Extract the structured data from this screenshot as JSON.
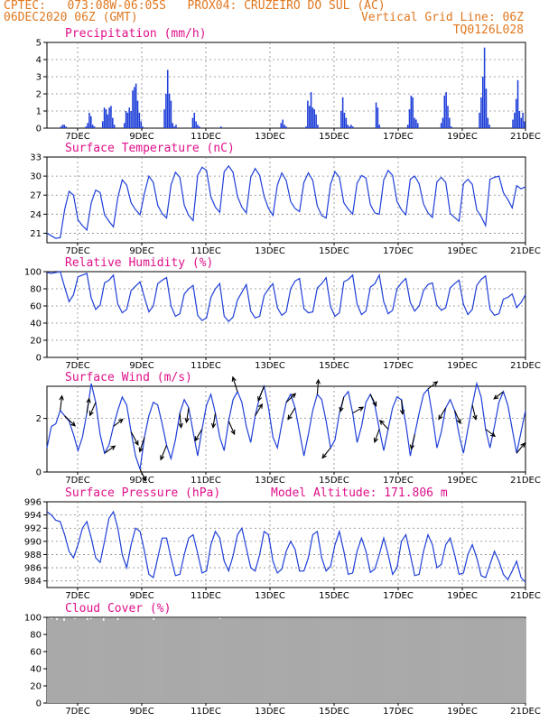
{
  "header": {
    "line1": "CPTEC:   073:08W-06:05S   PROX04: CRUZEIRO DO SUL (AC)",
    "line2_left": "06DEC2020 06Z (GMT)",
    "line2_right": "Vertical Grid Line: 06Z",
    "line3_right": "TQ0126L028"
  },
  "colors": {
    "header": "#e07820",
    "panel_title": "#e0108a",
    "series": "#1f3fd8",
    "cloud": "#a9a9a9",
    "arrow": "#000000"
  },
  "x_axis": {
    "start": "06DEC2020 06Z",
    "end": "21DEC2020 00Z",
    "tick_labels": [
      "7DEC",
      "9DEC",
      "11DEC",
      "13DEC",
      "15DEC",
      "17DEC",
      "19DEC",
      "21DEC"
    ]
  },
  "chart_data": [
    {
      "type": "bar",
      "title": "Precipitation (mm/h)",
      "ylim": [
        0,
        5
      ],
      "yticks": [
        "0",
        "1",
        "2",
        "3",
        "4",
        "5"
      ],
      "values": [
        0,
        0,
        0,
        0,
        0,
        0,
        0,
        0,
        0.1,
        0.2,
        0.2,
        0.1,
        0,
        0,
        0,
        0,
        0,
        0,
        0,
        0,
        0,
        0,
        0,
        0.1,
        0.3,
        0.9,
        0.7,
        0.2,
        0.1,
        0,
        0,
        0,
        0,
        0.4,
        1.2,
        1.1,
        0.8,
        1.2,
        1.3,
        0.6,
        0.2,
        0,
        0,
        0,
        0,
        0,
        0.3,
        1.0,
        0.9,
        1.2,
        1.0,
        2.2,
        2.4,
        2.6,
        1.6,
        0.9,
        0.4,
        0.1,
        0,
        0,
        0,
        0,
        0,
        0,
        0,
        0,
        0,
        0,
        0,
        0,
        1.1,
        2.0,
        3.4,
        2.0,
        1.6,
        0.3,
        0.1,
        0.2,
        0,
        0,
        0,
        0,
        0,
        0,
        0,
        0,
        0,
        0.6,
        0.9,
        0.4,
        0.2,
        0.1,
        0,
        0,
        0,
        0,
        0,
        0,
        0,
        0,
        0,
        0,
        0,
        0,
        0.1,
        0,
        0,
        0,
        0,
        0,
        0,
        0,
        0,
        0,
        0,
        0,
        0,
        0,
        0,
        0,
        0,
        0,
        0,
        0,
        0,
        0,
        0,
        0,
        0,
        0,
        0,
        0,
        0,
        0,
        0,
        0,
        0,
        0,
        0,
        0,
        0.3,
        0.5,
        0.2,
        0.1,
        0,
        0,
        0,
        0,
        0,
        0,
        0,
        0,
        0,
        0,
        0,
        0.1,
        1.6,
        1.3,
        2.1,
        1.2,
        1.1,
        0.8,
        0.2,
        0,
        0,
        0,
        0,
        0,
        0,
        0,
        0,
        0,
        0,
        0,
        0,
        0,
        1.0,
        1.8,
        0.9,
        0.6,
        0.2,
        0.1,
        0.2,
        0.1,
        0,
        0,
        0,
        0,
        0,
        0,
        0,
        0,
        0,
        0,
        0,
        0,
        0,
        1.5,
        1.2,
        0.2,
        0,
        0,
        0,
        0,
        0,
        0,
        0,
        0,
        0,
        0,
        0,
        0,
        0,
        0,
        0,
        0,
        0.2,
        1.1,
        1.9,
        1.8,
        0.6,
        0.5,
        0.3,
        0,
        0,
        0,
        0,
        0,
        0,
        0,
        0,
        0,
        0,
        0,
        0,
        0,
        0.3,
        0.6,
        1.9,
        2.1,
        1.3,
        0.6,
        0.1,
        0,
        0,
        0,
        0,
        0,
        0,
        0,
        0,
        0,
        0,
        0,
        0,
        0,
        0,
        0,
        0,
        0.9,
        1.8,
        3.0,
        4.7,
        2.3,
        0.6,
        0.2,
        0,
        0,
        0,
        0,
        0,
        0,
        0,
        0,
        0,
        0,
        0,
        0,
        0,
        0.5,
        0.9,
        1.7,
        2.8,
        1.0,
        0.6,
        0.9,
        0.4
      ]
    },
    {
      "type": "line",
      "title": "Surface Temperature (nC)",
      "ylim": [
        19.5,
        33
      ],
      "yticks": [
        "21",
        "24",
        "27",
        "30",
        "33"
      ],
      "series": [
        {
          "values": [
            21.0,
            20.6,
            20.2,
            20.3,
            24.7,
            27.6,
            27.0,
            23.1,
            22.2,
            21.5,
            25.8,
            27.8,
            27.4,
            23.9,
            22.9,
            22.0,
            26.6,
            29.4,
            28.6,
            25.8,
            24.7,
            23.9,
            27.3,
            30.0,
            29.0,
            25.4,
            24.1,
            23.4,
            28.6,
            30.6,
            29.8,
            25.4,
            23.8,
            23.0,
            30.1,
            31.4,
            30.9,
            26.7,
            25.1,
            24.3,
            30.7,
            31.6,
            30.6,
            26.8,
            25.1,
            24.2,
            29.8,
            31.2,
            30.1,
            26.8,
            24.9,
            23.8,
            28.6,
            30.5,
            29.3,
            26.0,
            24.9,
            24.4,
            29.0,
            30.5,
            29.3,
            25.3,
            23.8,
            23.4,
            28.7,
            30.7,
            29.8,
            25.8,
            24.8,
            24.0,
            28.9,
            30.1,
            29.7,
            25.5,
            24.2,
            24.0,
            29.4,
            30.9,
            30.1,
            26.0,
            24.7,
            23.9,
            29.5,
            30.0,
            28.8,
            25.6,
            24.2,
            23.5,
            29.1,
            29.8,
            29.0,
            24.1,
            23.5,
            22.9,
            28.8,
            29.5,
            28.7,
            24.7,
            23.6,
            22.2,
            29.5,
            29.8,
            30.0,
            27.4,
            26.3,
            25.0,
            28.5,
            28.0,
            28.3
          ]
        }
      ]
    },
    {
      "type": "line",
      "title": "Relative Humidity (%)",
      "ylim": [
        0,
        100
      ],
      "yticks": [
        "0",
        "20",
        "40",
        "60",
        "80",
        "100"
      ],
      "series": [
        {
          "values": [
            99,
            98,
            99,
            100,
            82,
            65,
            73,
            94,
            96,
            98,
            69,
            56,
            61,
            87,
            90,
            96,
            62,
            52,
            56,
            78,
            83,
            88,
            70,
            53,
            60,
            86,
            90,
            93,
            60,
            48,
            51,
            74,
            80,
            84,
            49,
            43,
            46,
            70,
            80,
            86,
            48,
            42,
            47,
            67,
            76,
            85,
            54,
            46,
            48,
            72,
            80,
            86,
            58,
            49,
            53,
            80,
            89,
            92,
            57,
            52,
            53,
            81,
            86,
            93,
            59,
            48,
            52,
            88,
            91,
            96,
            62,
            50,
            54,
            82,
            86,
            96,
            65,
            51,
            55,
            80,
            87,
            92,
            64,
            54,
            60,
            78,
            85,
            87,
            61,
            55,
            58,
            81,
            86,
            90,
            62,
            50,
            56,
            84,
            91,
            95,
            56,
            49,
            51,
            68,
            70,
            74,
            58,
            64,
            73
          ]
        }
      ]
    },
    {
      "type": "line",
      "title": "Surface Wind (m/s)",
      "ylim": [
        0,
        3.2
      ],
      "yticks": [
        "0",
        "2"
      ],
      "series": [
        {
          "values": [
            0.9,
            1.7,
            1.8,
            2.3,
            2.1,
            1.9,
            1.4,
            0.8,
            1.3,
            2.2,
            3.3,
            2.6,
            1.4,
            0.7,
            1.0,
            1.7,
            2.3,
            2.8,
            2.5,
            1.5,
            0.6,
            0.1,
            1.3,
            2.1,
            2.6,
            2.5,
            1.8,
            1.0,
            0.5,
            1.2,
            2.2,
            2.7,
            2.4,
            1.5,
            0.6,
            1.6,
            2.5,
            2.9,
            2.2,
            1.3,
            0.8,
            1.9,
            2.7,
            3.0,
            2.6,
            1.7,
            1.1,
            2.1,
            2.8,
            3.2,
            2.4,
            1.3,
            0.9,
            1.8,
            2.6,
            2.9,
            2.4,
            1.5,
            0.6,
            1.4,
            2.3,
            2.9,
            2.7,
            1.9,
            0.9,
            1.2,
            2.2,
            2.8,
            3.0,
            2.2,
            1.1,
            1.7,
            2.6,
            2.9,
            2.5,
            1.6,
            0.8,
            1.6,
            2.4,
            2.8,
            2.7,
            1.8,
            0.6,
            1.4,
            2.2,
            2.9,
            3.1,
            2.1,
            0.9,
            1.5,
            2.4,
            2.7,
            2.3,
            1.4,
            0.7,
            1.6,
            2.5,
            3.3,
            2.8,
            1.6,
            0.9,
            1.7,
            2.6,
            3.0,
            2.5,
            1.6,
            0.7,
            1.5,
            2.3
          ]
        }
      ],
      "wind_vectors": [
        {
          "t": 3,
          "dx": 0.15,
          "dy": 1
        },
        {
          "t": 4,
          "dx": 0.9,
          "dy": -0.7
        },
        {
          "t": 9,
          "dx": 0.2,
          "dy": 1
        },
        {
          "t": 11,
          "dx": -0.5,
          "dy": -0.9
        },
        {
          "t": 13,
          "dx": 0.9,
          "dy": 0.5
        },
        {
          "t": 15,
          "dx": 0.8,
          "dy": 0.5
        },
        {
          "t": 19,
          "dx": 0.6,
          "dy": -0.9
        },
        {
          "t": 21,
          "dx": 0.5,
          "dy": -0.8
        },
        {
          "t": 22,
          "dx": -0.4,
          "dy": -1
        },
        {
          "t": 27,
          "dx": -0.5,
          "dy": -1
        },
        {
          "t": 30,
          "dx": 0.1,
          "dy": -1
        },
        {
          "t": 32,
          "dx": -0.2,
          "dy": -1
        },
        {
          "t": 35,
          "dx": -0.6,
          "dy": -0.8
        },
        {
          "t": 38,
          "dx": -0.2,
          "dy": -1
        },
        {
          "t": 41,
          "dx": 0.5,
          "dy": -0.9
        },
        {
          "t": 43,
          "dx": -0.4,
          "dy": 1
        },
        {
          "t": 47,
          "dx": 0.6,
          "dy": 0.8
        },
        {
          "t": 49,
          "dx": -0.5,
          "dy": -1
        },
        {
          "t": 54,
          "dx": 0.8,
          "dy": 0.6
        },
        {
          "t": 56,
          "dx": -0.6,
          "dy": -0.8
        },
        {
          "t": 61,
          "dx": 0.1,
          "dy": 1
        },
        {
          "t": 64,
          "dx": -0.7,
          "dy": -0.7
        },
        {
          "t": 67,
          "dx": -0.3,
          "dy": -1
        },
        {
          "t": 69,
          "dx": 0.9,
          "dy": 0.4
        },
        {
          "t": 73,
          "dx": 0.5,
          "dy": -0.8
        },
        {
          "t": 75,
          "dx": -0.4,
          "dy": -0.9
        },
        {
          "t": 77,
          "dx": -0.7,
          "dy": 0.6
        },
        {
          "t": 80,
          "dx": 0.1,
          "dy": -1
        },
        {
          "t": 83,
          "dx": -0.3,
          "dy": -1
        },
        {
          "t": 86,
          "dx": 0.8,
          "dy": 0.5
        },
        {
          "t": 90,
          "dx": -0.6,
          "dy": -0.8
        },
        {
          "t": 92,
          "dx": 0.5,
          "dy": -0.9
        },
        {
          "t": 96,
          "dx": 0.3,
          "dy": -1
        },
        {
          "t": 99,
          "dx": 0.8,
          "dy": -0.5
        },
        {
          "t": 103,
          "dx": -0.8,
          "dy": -0.5
        },
        {
          "t": 106,
          "dx": 0.7,
          "dy": 0.7
        }
      ]
    },
    {
      "type": "line",
      "title": "Surface Pressure (hPa)",
      "annotation": "Model Altitude: 171.806 m",
      "ylim": [
        983,
        996
      ],
      "yticks": [
        "984",
        "986",
        "988",
        "990",
        "992",
        "994",
        "996"
      ],
      "series": [
        {
          "values": [
            994.5,
            994.0,
            993.2,
            993.0,
            991.0,
            988.5,
            987.5,
            989.5,
            992.0,
            993.0,
            990.5,
            987.5,
            986.8,
            990.0,
            993.5,
            994.5,
            992.0,
            988.0,
            986.0,
            989.5,
            992.0,
            991.5,
            988.5,
            985.0,
            984.5,
            987.5,
            990.5,
            990.5,
            987.5,
            984.8,
            985.0,
            988.0,
            990.5,
            991.0,
            988.2,
            985.2,
            985.5,
            989.5,
            991.5,
            990.5,
            987.0,
            985.5,
            987.8,
            991.0,
            992.0,
            989.0,
            986.0,
            985.5,
            988.0,
            991.5,
            991.0,
            987.0,
            985.2,
            985.8,
            988.5,
            990.0,
            988.8,
            985.5,
            985.5,
            987.5,
            991.0,
            991.5,
            987.5,
            985.5,
            986.2,
            989.5,
            991.5,
            988.5,
            985.0,
            985.2,
            988.5,
            990.5,
            988.5,
            985.3,
            985.8,
            988.0,
            990.5,
            988.0,
            985.0,
            986.0,
            990.0,
            991.0,
            988.0,
            984.8,
            985.0,
            988.5,
            991.0,
            989.5,
            986.0,
            986.5,
            989.5,
            990.5,
            988.0,
            985.0,
            985.2,
            988.0,
            989.5,
            987.5,
            984.8,
            984.5,
            986.5,
            988.5,
            987.0,
            985.0,
            984.2,
            985.5,
            987.0,
            984.5,
            983.8
          ]
        }
      ]
    },
    {
      "type": "bar",
      "title": "Cloud Cover (%)",
      "ylim": [
        0,
        100
      ],
      "yticks": [
        "0",
        "20",
        "40",
        "60",
        "80",
        "100"
      ],
      "values": [
        99,
        99,
        98,
        99,
        99,
        97,
        99,
        99,
        99,
        96,
        99,
        99,
        99,
        99,
        99,
        98,
        99,
        99,
        99,
        99,
        99,
        99,
        97,
        99,
        98,
        99,
        99,
        99,
        99,
        99,
        99,
        96,
        99,
        99,
        99,
        99,
        99,
        99,
        99,
        97,
        99,
        99,
        99,
        99,
        99,
        99,
        99,
        99,
        99,
        99,
        99,
        99,
        99,
        99,
        99,
        99,
        99,
        99,
        99,
        97,
        99,
        99,
        99,
        99,
        99,
        99,
        99,
        99,
        99,
        99,
        99,
        99,
        99,
        99,
        99,
        99,
        99,
        99,
        99,
        99,
        99,
        99,
        99,
        99,
        99,
        99,
        99,
        99,
        99,
        99,
        99,
        99,
        99,
        99,
        99,
        99,
        98,
        99,
        99,
        99,
        99,
        99,
        99,
        99,
        99,
        99,
        99,
        99,
        99,
        99,
        99,
        99,
        99,
        99,
        99,
        99,
        99,
        99,
        99,
        99,
        99,
        99,
        99,
        99,
        99,
        99,
        99,
        99,
        99,
        99,
        99,
        99,
        99,
        99,
        99,
        99,
        99,
        99,
        99,
        99,
        99,
        99,
        99,
        99,
        99,
        99,
        99,
        99,
        99,
        99,
        99,
        99,
        99,
        99,
        99,
        99,
        99,
        99,
        99,
        99,
        99,
        99,
        99,
        99,
        99,
        99,
        99,
        99,
        99,
        99,
        99,
        99,
        99,
        99,
        99,
        99,
        99,
        99,
        99,
        99,
        99,
        99,
        99,
        99,
        99,
        99,
        99,
        99,
        99,
        99,
        99,
        99,
        99,
        99,
        99,
        99,
        99,
        99,
        99,
        99,
        99,
        99,
        99,
        99,
        99,
        99,
        99,
        99,
        99,
        99,
        99,
        99,
        99,
        99,
        99,
        99,
        99,
        99,
        99,
        99,
        99,
        99,
        99,
        99,
        99,
        99,
        99,
        99,
        99,
        99,
        99,
        99,
        99,
        99,
        99,
        99,
        99,
        99,
        99,
        99,
        99,
        99,
        99,
        99,
        99,
        99,
        99,
        99,
        99,
        99,
        99,
        99,
        99,
        99,
        99,
        99,
        99,
        99,
        99,
        99,
        99,
        99,
        99,
        99,
        99,
        99,
        99
      ]
    }
  ]
}
